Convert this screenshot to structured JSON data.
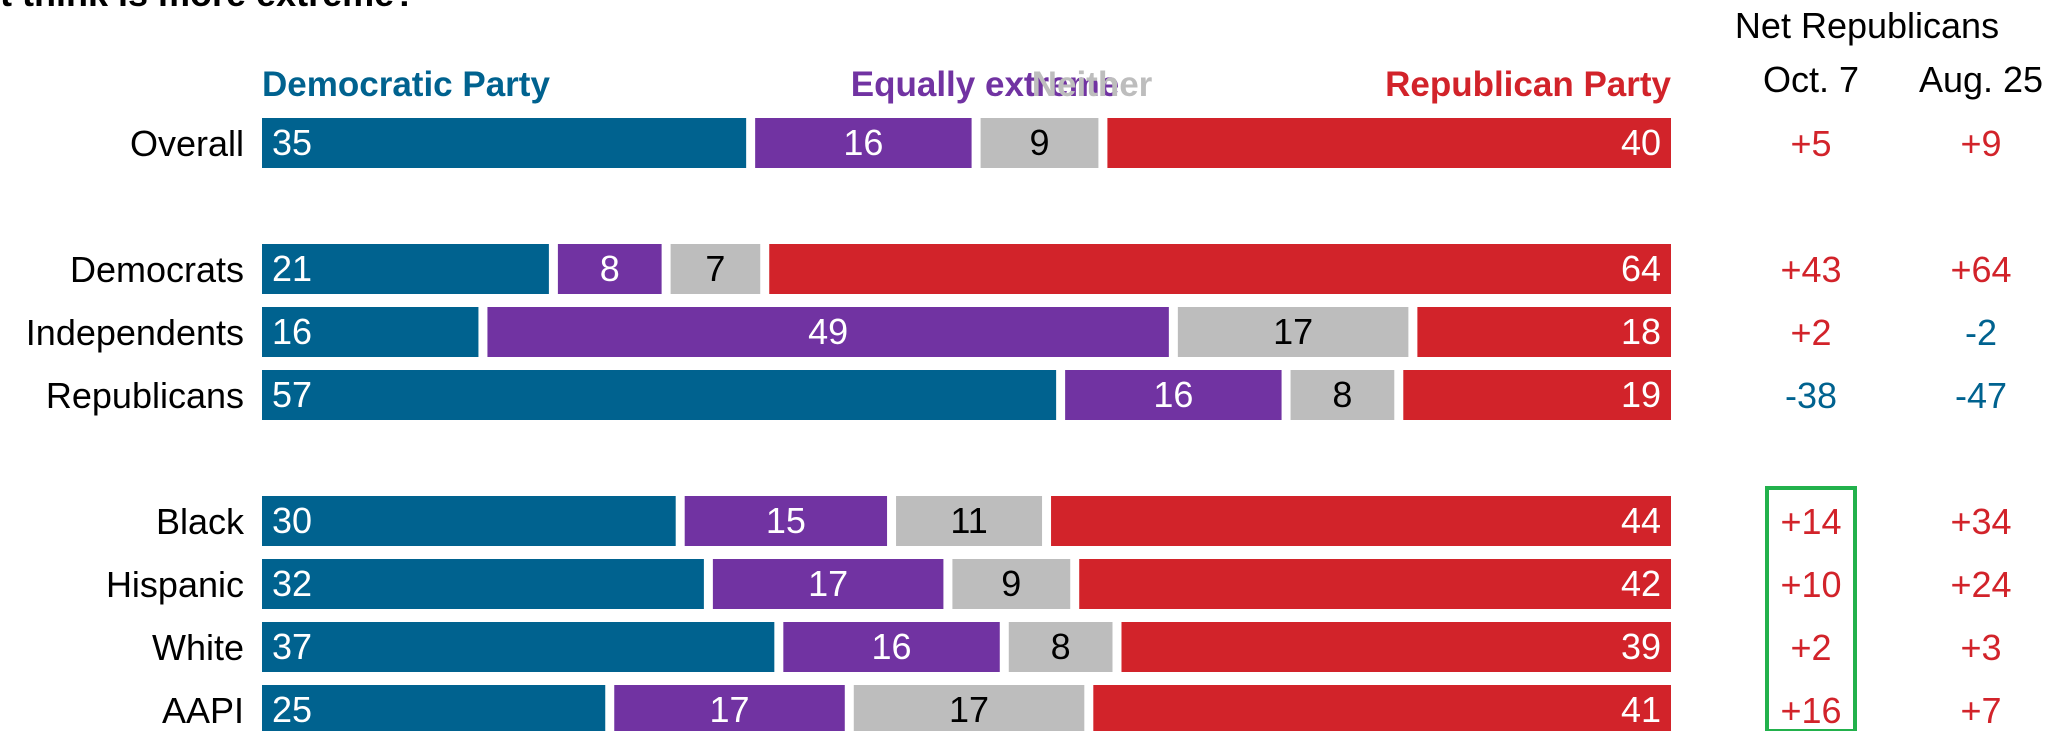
{
  "question_fragment": "t think is more extreme?",
  "net_header": "Net Republicans",
  "colors": {
    "democratic": "#00628f",
    "equally": "#7133a2",
    "neither": "#bdbdbd",
    "republican": "#d2232a",
    "highlight": "#22b14c",
    "text_dark": "#000000",
    "text_light": "#ffffff"
  },
  "chart_data": {
    "type": "bar",
    "orientation": "horizontal",
    "stacked": true,
    "percent_scale": true,
    "legend": [
      {
        "key": "dem",
        "label": "Democratic Party"
      },
      {
        "key": "eq",
        "label": "Equally extreme"
      },
      {
        "key": "nei",
        "label": "Neither"
      },
      {
        "key": "rep",
        "label": "Republican Party"
      }
    ],
    "net_columns": [
      "Oct. 7",
      "Aug. 25"
    ],
    "groups": [
      {
        "rows": [
          {
            "label": "Overall",
            "dem": 35,
            "eq": 16,
            "nei": 9,
            "rep": 40,
            "net": [
              "+5",
              "+9"
            ]
          }
        ]
      },
      {
        "rows": [
          {
            "label": "Democrats",
            "dem": 21,
            "eq": 8,
            "nei": 7,
            "rep": 64,
            "net": [
              "+43",
              "+64"
            ]
          },
          {
            "label": "Independents",
            "dem": 16,
            "eq": 49,
            "nei": 17,
            "rep": 18,
            "net": [
              "+2",
              "-2"
            ]
          },
          {
            "label": "Republicans",
            "dem": 57,
            "eq": 16,
            "nei": 8,
            "rep": 19,
            "net": [
              "-38",
              "-47"
            ]
          }
        ]
      },
      {
        "rows": [
          {
            "label": "Black",
            "dem": 30,
            "eq": 15,
            "nei": 11,
            "rep": 44,
            "net": [
              "+14",
              "+34"
            ]
          },
          {
            "label": "Hispanic",
            "dem": 32,
            "eq": 17,
            "nei": 9,
            "rep": 42,
            "net": [
              "+10",
              "+24"
            ]
          },
          {
            "label": "White",
            "dem": 37,
            "eq": 16,
            "nei": 8,
            "rep": 39,
            "net": [
              "+2",
              "+3"
            ]
          },
          {
            "label": "AAPI",
            "dem": 25,
            "eq": 17,
            "nei": 17,
            "rep": 41,
            "net": [
              "+16",
              "+7"
            ]
          }
        ]
      }
    ],
    "highlighted": {
      "column": "Oct. 7",
      "group": 2
    }
  }
}
